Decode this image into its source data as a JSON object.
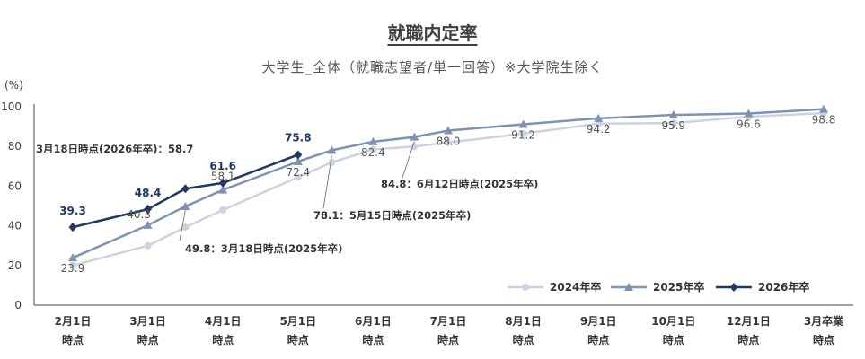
{
  "chart_data": {
    "type": "line",
    "title": "就職内定率",
    "subtitle": "大学生_全体（就職志望者/単一回答）※大学院生除く",
    "ylabel": "(%)",
    "ylim": [
      0,
      100
    ],
    "yticks": [
      "0",
      "20",
      "40",
      "60",
      "80",
      "100"
    ],
    "grid": false,
    "legend_position": "bottom-right",
    "categories": [
      [
        "2月1日",
        "時点"
      ],
      [
        "3月1日",
        "時点"
      ],
      [
        "4月1日",
        "時点"
      ],
      [
        "5月1日",
        "時点"
      ],
      [
        "6月1日",
        "時点"
      ],
      [
        "7月1日",
        "時点"
      ],
      [
        "8月1日",
        "時点"
      ],
      [
        "9月1日",
        "時点"
      ],
      [
        "10月1日",
        "時点"
      ],
      [
        "12月1日",
        "時点"
      ],
      [
        "3月卒業",
        "時点"
      ]
    ],
    "series": [
      {
        "name": "2024年卒",
        "color": "#ccd3e0",
        "marker": "circle",
        "points": [
          [
            0,
            20.0
          ],
          [
            1,
            30.0
          ],
          [
            1.5,
            39.3
          ],
          [
            2,
            48.0
          ],
          [
            3,
            64.5
          ],
          [
            3.45,
            72.0
          ],
          [
            4,
            78.5
          ],
          [
            4.55,
            80.0
          ],
          [
            5,
            82.0
          ],
          [
            6,
            86.5
          ],
          [
            7,
            91.5
          ],
          [
            8,
            91.8
          ],
          [
            9,
            95.0
          ],
          [
            10,
            96.8
          ]
        ],
        "labels": []
      },
      {
        "name": "2025年卒",
        "color": "#7e93b4",
        "marker": "triangle",
        "points": [
          [
            0,
            23.9
          ],
          [
            1,
            40.3
          ],
          [
            1.5,
            49.8
          ],
          [
            2,
            58.1
          ],
          [
            3,
            72.4
          ],
          [
            3.45,
            78.1
          ],
          [
            4,
            82.4
          ],
          [
            4.55,
            84.8
          ],
          [
            5,
            88.0
          ],
          [
            6,
            91.2
          ],
          [
            7,
            94.2
          ],
          [
            8,
            95.9
          ],
          [
            9,
            96.6
          ],
          [
            10,
            98.8
          ]
        ],
        "labels": [
          {
            "i": 0,
            "text": "23.9"
          },
          {
            "i": 1,
            "text": "40.3"
          },
          {
            "i": 3,
            "text": "58.1"
          },
          {
            "i": 4,
            "text": "72.4"
          },
          {
            "i": 6,
            "text": "82.4"
          },
          {
            "i": 8,
            "text": "88.0"
          },
          {
            "i": 9,
            "text": "91.2"
          },
          {
            "i": 10,
            "text": "94.2"
          },
          {
            "i": 11,
            "text": "95.9"
          },
          {
            "i": 12,
            "text": "96.6"
          },
          {
            "i": 13,
            "text": "98.8"
          }
        ]
      },
      {
        "name": "2026年卒",
        "color": "#1f3864",
        "marker": "diamond",
        "points": [
          [
            0,
            39.3
          ],
          [
            1,
            48.4
          ],
          [
            1.5,
            58.7
          ],
          [
            2,
            61.6
          ],
          [
            3,
            75.8
          ]
        ],
        "labels": [
          {
            "i": 0,
            "text": "39.3"
          },
          {
            "i": 1,
            "text": "48.4"
          },
          {
            "i": 3,
            "text": "61.6"
          },
          {
            "i": 4,
            "text": "75.8"
          }
        ]
      }
    ],
    "annotations": [
      {
        "text": "3月18日時点(2026年卒)：58.7"
      },
      {
        "text": "49.8：3月18日時点(2025年卒)"
      },
      {
        "text": "78.1：5月15日時点(2025年卒)"
      },
      {
        "text": "84.8：6月12日時点(2025年卒)"
      }
    ]
  }
}
